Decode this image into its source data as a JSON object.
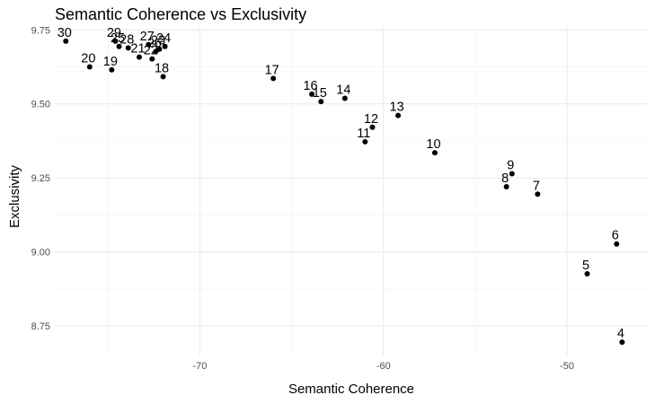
{
  "chart_data": {
    "type": "scatter",
    "title": "Semantic Coherence vs Exclusivity",
    "xlabel": "Semantic Coherence",
    "ylabel": "Exclusivity",
    "xlim": [
      -77.9,
      -45.6
    ],
    "ylim": [
      8.65,
      9.76
    ],
    "x_ticks": [
      -70,
      -60,
      -50
    ],
    "x_tick_labels": [
      "-70",
      "-60",
      "-50"
    ],
    "y_ticks": [
      8.75,
      9.0,
      9.25,
      9.5,
      9.75
    ],
    "y_tick_labels": [
      "8.75",
      "9.00",
      "9.25",
      "9.50",
      "9.75"
    ],
    "x_minor_ticks": [
      -75,
      -65,
      -55,
      -45
    ],
    "y_minor_ticks": [
      8.875,
      9.125,
      9.375,
      9.625
    ],
    "grid": true,
    "point_color": "#000000",
    "points": [
      {
        "label": "4",
        "x": -47.0,
        "y": 8.695
      },
      {
        "label": "5",
        "x": -48.9,
        "y": 8.926
      },
      {
        "label": "6",
        "x": -47.3,
        "y": 9.027
      },
      {
        "label": "7",
        "x": -51.6,
        "y": 9.195
      },
      {
        "label": "8",
        "x": -53.3,
        "y": 9.22
      },
      {
        "label": "9",
        "x": -53.0,
        "y": 9.264
      },
      {
        "label": "10",
        "x": -57.2,
        "y": 9.335
      },
      {
        "label": "11",
        "x": -61.0,
        "y": 9.372
      },
      {
        "label": "12",
        "x": -60.6,
        "y": 9.421
      },
      {
        "label": "13",
        "x": -59.2,
        "y": 9.461
      },
      {
        "label": "14",
        "x": -62.1,
        "y": 9.519
      },
      {
        "label": "15",
        "x": -63.4,
        "y": 9.508
      },
      {
        "label": "16",
        "x": -63.9,
        "y": 9.533
      },
      {
        "label": "17",
        "x": -66.0,
        "y": 9.586
      },
      {
        "label": "18",
        "x": -72.0,
        "y": 9.592
      },
      {
        "label": "19",
        "x": -74.8,
        "y": 9.615
      },
      {
        "label": "20",
        "x": -76.0,
        "y": 9.625
      },
      {
        "label": "21",
        "x": -73.3,
        "y": 9.658
      },
      {
        "label": "22",
        "x": -72.6,
        "y": 9.652
      },
      {
        "label": "23",
        "x": -72.2,
        "y": 9.685
      },
      {
        "label": "24",
        "x": -71.9,
        "y": 9.694
      },
      {
        "label": "25",
        "x": -74.4,
        "y": 9.694
      },
      {
        "label": "26",
        "x": -72.4,
        "y": 9.677
      },
      {
        "label": "27",
        "x": -72.8,
        "y": 9.7
      },
      {
        "label": "28",
        "x": -73.9,
        "y": 9.689
      },
      {
        "label": "29",
        "x": -74.6,
        "y": 9.712
      },
      {
        "label": "30",
        "x": -77.3,
        "y": 9.712
      }
    ]
  }
}
